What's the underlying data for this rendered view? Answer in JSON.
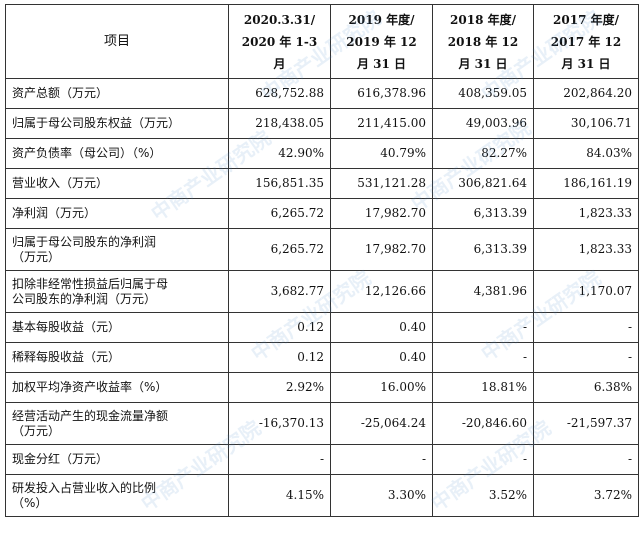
{
  "header": {
    "item": "项目",
    "cols": [
      [
        "2020.3.31/",
        "2020 年 1-3 月"
      ],
      [
        "2019 年度/",
        "2019 年 12",
        "月 31 日"
      ],
      [
        "2018 年度/",
        "2018 年 12",
        "月 31 日"
      ],
      [
        "2017 年度/",
        "2017 年 12",
        "月 31 日"
      ]
    ]
  },
  "rows": [
    {
      "label": [
        "资产总额（万元）"
      ],
      "values": [
        "628,752.88",
        "616,378.96",
        "408,359.05",
        "202,864.20"
      ]
    },
    {
      "label": [
        "归属于母公司股东权益（万元）"
      ],
      "values": [
        "218,438.05",
        "211,415.00",
        "49,003.96",
        "30,106.71"
      ]
    },
    {
      "label": [
        "资产负债率（母公司）（%）"
      ],
      "values": [
        "42.90%",
        "40.79%",
        "82.27%",
        "84.03%"
      ]
    },
    {
      "label": [
        "营业收入（万元）"
      ],
      "values": [
        "156,851.35",
        "531,121.28",
        "306,821.64",
        "186,161.19"
      ]
    },
    {
      "label": [
        "净利润（万元）"
      ],
      "values": [
        "6,265.72",
        "17,982.70",
        "6,313.39",
        "1,823.33"
      ]
    },
    {
      "label": [
        "归属于母公司股东的净利润",
        "（万元）"
      ],
      "values": [
        "6,265.72",
        "17,982.70",
        "6,313.39",
        "1,823.33"
      ]
    },
    {
      "label": [
        "扣除非经常性损益后归属于母",
        "公司股东的净利润（万元）"
      ],
      "values": [
        "3,682.77",
        "12,126.66",
        "4,381.96",
        "1,170.07"
      ]
    },
    {
      "label": [
        "基本每股收益（元）"
      ],
      "values": [
        "0.12",
        "0.40",
        "-",
        "-"
      ]
    },
    {
      "label": [
        "稀释每股收益（元）"
      ],
      "values": [
        "0.12",
        "0.40",
        "-",
        "-"
      ]
    },
    {
      "label": [
        "加权平均净资产收益率（%）"
      ],
      "values": [
        "2.92%",
        "16.00%",
        "18.81%",
        "6.38%"
      ]
    },
    {
      "label": [
        "经营活动产生的现金流量净额",
        "（万元）"
      ],
      "values": [
        "-16,370.13",
        "-25,064.24",
        "-20,846.60",
        "-21,597.37"
      ]
    },
    {
      "label": [
        "现金分红（万元）"
      ],
      "values": [
        "-",
        "-",
        "-",
        "-"
      ]
    },
    {
      "label": [
        "研发投入占营业收入的比例",
        "（%）"
      ],
      "values": [
        "4.15%",
        "3.30%",
        "3.52%",
        "3.72%"
      ]
    }
  ],
  "watermark": "中商产业研究院"
}
